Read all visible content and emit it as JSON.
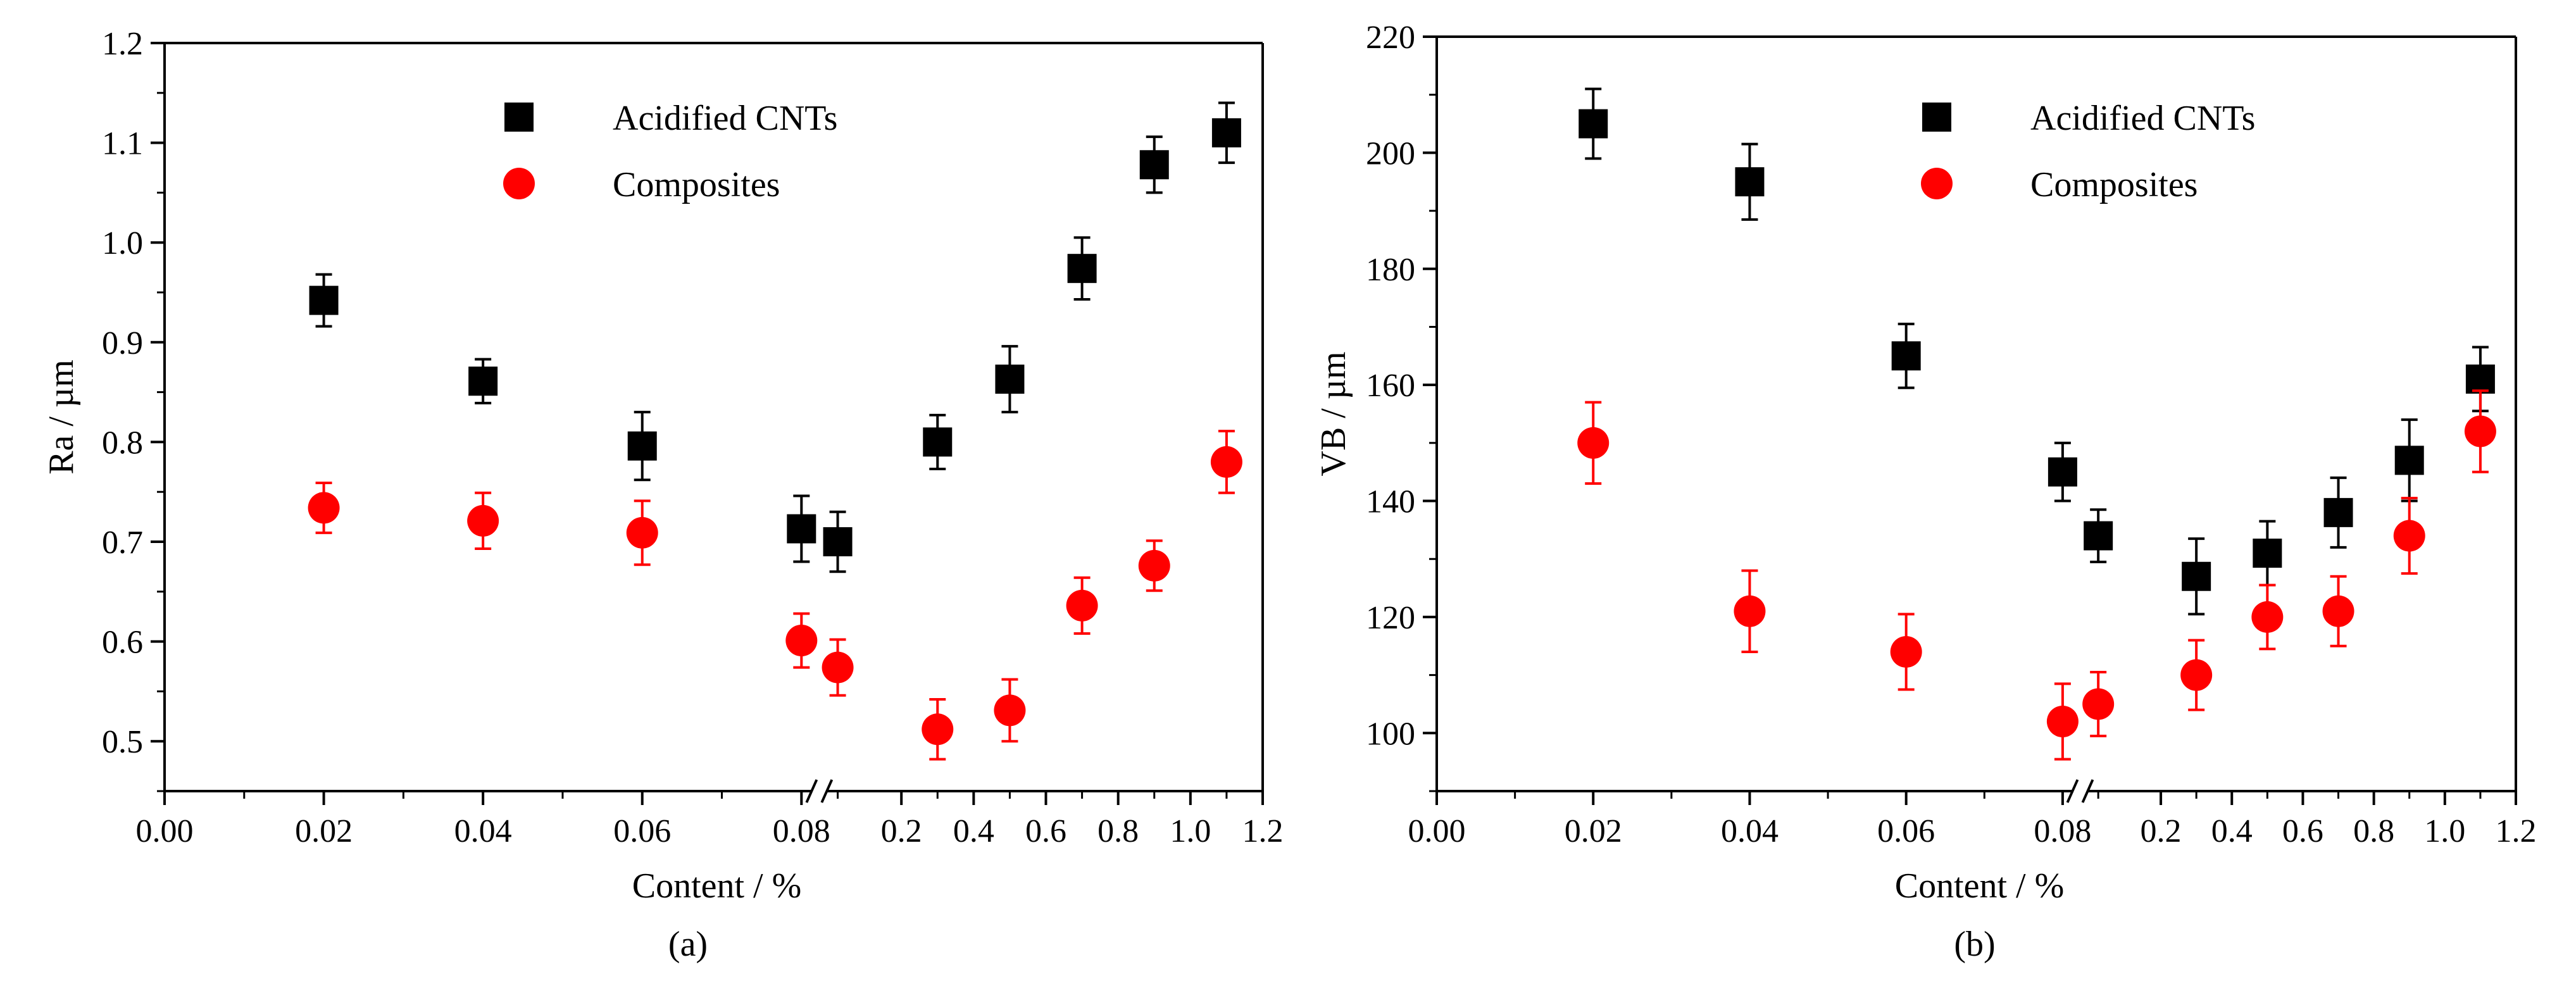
{
  "figure": {
    "panels": [
      "(a)",
      "(b)"
    ]
  },
  "colors": {
    "acidified": "#000000",
    "composites": "#ff0000",
    "axis": "#000000"
  },
  "chart_data": [
    {
      "type": "scatter",
      "panel_label": "(a)",
      "title": "",
      "xlabel": "Content / %",
      "ylabel": "Ra / µm",
      "ylim": [
        0.45,
        1.2
      ],
      "x_ticks": [
        "0.00",
        "0.02",
        "0.04",
        "0.06",
        "0.08",
        "0.2",
        "0.4",
        "0.6",
        "0.8",
        "1.0",
        "1.2"
      ],
      "y_ticks": [
        "0.5",
        "0.6",
        "0.7",
        "0.8",
        "0.9",
        "1.0",
        "1.1",
        "1.2"
      ],
      "x_axis_break": "between 0.08 and 0.2",
      "legend_position": "top-right",
      "series": [
        {
          "name": "Acidified CNTs",
          "marker": "square",
          "x": [
            0.02,
            0.04,
            0.06,
            0.08,
            0.1,
            0.3,
            0.5,
            0.7,
            0.9,
            1.1
          ],
          "y": [
            0.942,
            0.861,
            0.796,
            0.713,
            0.7,
            0.8,
            0.863,
            0.974,
            1.078,
            1.11
          ],
          "err": [
            0.026,
            0.022,
            0.034,
            0.033,
            0.03,
            0.027,
            0.033,
            0.031,
            0.028,
            0.03
          ]
        },
        {
          "name": "Composites",
          "marker": "circle",
          "x": [
            0.02,
            0.04,
            0.06,
            0.08,
            0.1,
            0.3,
            0.5,
            0.7,
            0.9,
            1.1
          ],
          "y": [
            0.734,
            0.721,
            0.709,
            0.601,
            0.574,
            0.512,
            0.531,
            0.636,
            0.676,
            0.78
          ],
          "err": [
            0.025,
            0.028,
            0.032,
            0.027,
            0.028,
            0.03,
            0.031,
            0.028,
            0.025,
            0.031
          ]
        }
      ]
    },
    {
      "type": "scatter",
      "panel_label": "(b)",
      "title": "",
      "xlabel": "Content / %",
      "ylabel": "VB / µm",
      "ylim": [
        90,
        220
      ],
      "x_ticks": [
        "0.00",
        "0.02",
        "0.04",
        "0.06",
        "0.08",
        "0.2",
        "0.4",
        "0.6",
        "0.8",
        "1.0",
        "1.2"
      ],
      "y_ticks": [
        "100",
        "120",
        "140",
        "160",
        "180",
        "200",
        "220"
      ],
      "x_axis_break": "between 0.08 and 0.2",
      "legend_position": "top-right",
      "series": [
        {
          "name": "Acidified CNTs",
          "marker": "square",
          "x": [
            0.02,
            0.04,
            0.06,
            0.08,
            0.1,
            0.3,
            0.5,
            0.7,
            0.9,
            1.1
          ],
          "y": [
            205,
            195,
            165,
            145,
            134,
            127,
            131,
            138,
            147,
            161
          ],
          "err": [
            6,
            6.5,
            5.5,
            5,
            4.5,
            6.5,
            5.5,
            6,
            7,
            5.5
          ]
        },
        {
          "name": "Composites",
          "marker": "circle",
          "x": [
            0.02,
            0.04,
            0.06,
            0.08,
            0.1,
            0.3,
            0.5,
            0.7,
            0.9,
            1.1
          ],
          "y": [
            150,
            121,
            114,
            102,
            105,
            110,
            120,
            121,
            134,
            152
          ],
          "err": [
            7,
            7,
            6.5,
            6.5,
            5.5,
            6,
            5.5,
            6,
            6.5,
            7
          ]
        }
      ]
    }
  ]
}
